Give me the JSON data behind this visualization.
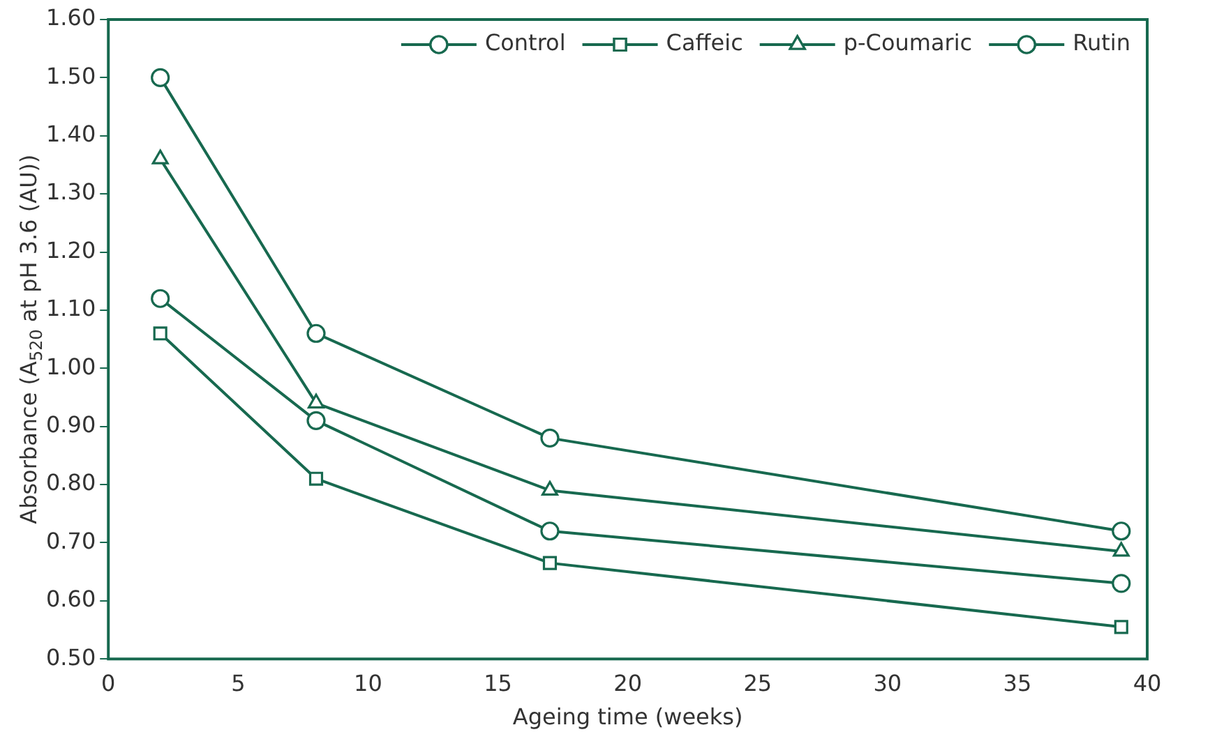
{
  "chart_data": {
    "type": "line",
    "xlabel": "Ageing time (weeks)",
    "ylabel": "Absorbance (A$_{520}$ at pH 3.6 (AU))",
    "x": [
      2,
      8,
      17,
      39
    ],
    "series": [
      {
        "name": "Control",
        "color": "#17694f",
        "values": [
          1.12,
          0.91,
          0.72,
          0.63
        ],
        "marker": "circle"
      },
      {
        "name": "Caffeic",
        "color": "#17694f",
        "values": [
          1.06,
          0.81,
          0.665,
          0.555
        ],
        "marker": "square"
      },
      {
        "name": "p-Coumaric",
        "color": "#17694f",
        "values": [
          1.36,
          0.94,
          0.79,
          0.685
        ],
        "marker": "triangle"
      },
      {
        "name": "Rutin",
        "color": "#17694f",
        "values": [
          1.5,
          1.06,
          0.88,
          0.72
        ],
        "marker": "circle"
      }
    ],
    "xlim": [
      0,
      40
    ],
    "xticks": [
      0,
      5,
      10,
      15,
      20,
      25,
      30,
      35,
      40
    ],
    "ylim": [
      0.5,
      1.6
    ],
    "yticks": [
      {
        "value": 0.5,
        "label": "0.50"
      },
      {
        "value": 0.6,
        "label": "0.60"
      },
      {
        "value": 0.7,
        "label": "0.70"
      },
      {
        "value": 0.8,
        "label": "0.80"
      },
      {
        "value": 0.9,
        "label": "0.90"
      },
      {
        "value": 1.0,
        "label": "1.00"
      },
      {
        "value": 1.1,
        "label": "1.10"
      },
      {
        "value": 1.2,
        "label": "1.20"
      },
      {
        "value": 1.3,
        "label": "1.30"
      },
      {
        "value": 1.4,
        "label": "1.40"
      },
      {
        "value": 1.5,
        "label": "1.50"
      },
      {
        "value": 1.6,
        "label": "1.60"
      }
    ],
    "grid": false,
    "legend": "top right",
    "line_style": "solid"
  }
}
